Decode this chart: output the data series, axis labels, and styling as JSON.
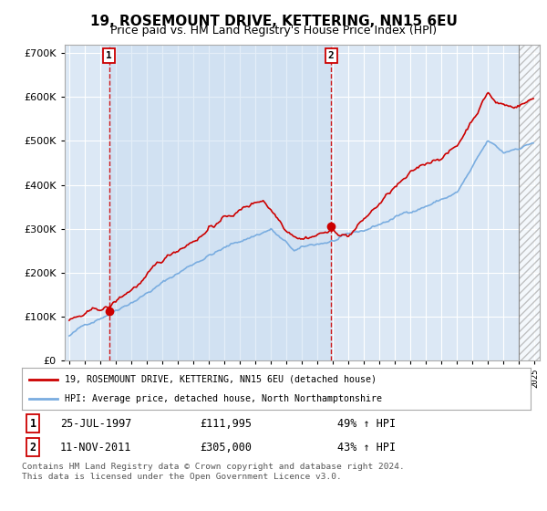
{
  "title": "19, ROSEMOUNT DRIVE, KETTERING, NN15 6EU",
  "subtitle": "Price paid vs. HM Land Registry's House Price Index (HPI)",
  "ylim": [
    0,
    720000
  ],
  "yticks": [
    0,
    100000,
    200000,
    300000,
    400000,
    500000,
    600000,
    700000
  ],
  "ytick_labels": [
    "£0",
    "£100K",
    "£200K",
    "£300K",
    "£400K",
    "£500K",
    "£600K",
    "£700K"
  ],
  "bg_color": "#ffffff",
  "plot_bg_color": "#dce8f5",
  "grid_color": "#ffffff",
  "sale1_date": 1997.583,
  "sale1_price": 111995,
  "sale2_date": 2011.875,
  "sale2_price": 305000,
  "legend_line1": "19, ROSEMOUNT DRIVE, KETTERING, NN15 6EU (detached house)",
  "legend_line2": "HPI: Average price, detached house, North Northamptonshire",
  "footnote": "Contains HM Land Registry data © Crown copyright and database right 2024.\nThis data is licensed under the Open Government Licence v3.0.",
  "line_color_red": "#cc0000",
  "line_color_blue": "#7aade0",
  "title_fontsize": 11,
  "subtitle_fontsize": 9
}
